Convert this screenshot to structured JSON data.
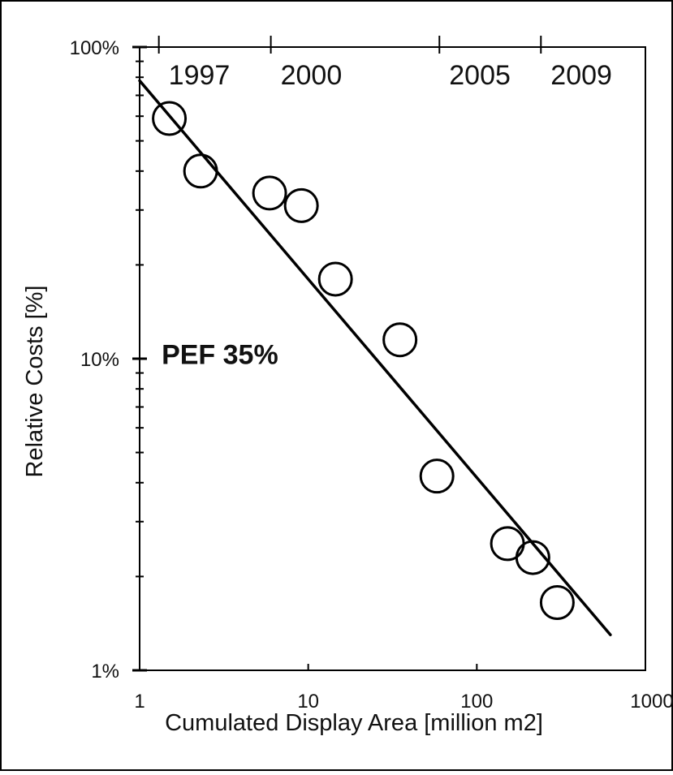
{
  "chart_data": {
    "type": "scatter",
    "xscale": "log",
    "yscale": "log",
    "xlim": [
      1,
      1000
    ],
    "ylim": [
      1,
      100
    ],
    "xlabel": "Cumulated Display Area [million m2]",
    "ylabel": "Relative Costs [%]",
    "x_tick_labels": [
      {
        "value": 1,
        "label": "1"
      },
      {
        "value": 10,
        "label": "10"
      },
      {
        "value": 100,
        "label": "100"
      },
      {
        "value": 1000,
        "label": "1000"
      }
    ],
    "y_tick_labels": [
      {
        "value": 1,
        "label": "1%"
      },
      {
        "value": 10,
        "label": "10%"
      },
      {
        "value": 100,
        "label": "100%"
      }
    ],
    "year_axis": [
      {
        "x": 1.3,
        "label": "1997"
      },
      {
        "x": 6.0,
        "label": "2000"
      },
      {
        "x": 60,
        "label": "2005"
      },
      {
        "x": 240,
        "label": "2009"
      }
    ],
    "series": [
      {
        "marker": "open-circle",
        "points": [
          {
            "x": 1.5,
            "y": 59
          },
          {
            "x": 2.3,
            "y": 40
          },
          {
            "x": 5.9,
            "y": 34
          },
          {
            "x": 9.1,
            "y": 31
          },
          {
            "x": 14.5,
            "y": 18
          },
          {
            "x": 35,
            "y": 11.5
          },
          {
            "x": 58,
            "y": 4.2
          },
          {
            "x": 152,
            "y": 2.55
          },
          {
            "x": 215,
            "y": 2.3
          },
          {
            "x": 300,
            "y": 1.65
          }
        ]
      }
    ],
    "trend_line": {
      "x": [
        1,
        620
      ],
      "y": [
        78,
        1.3
      ]
    },
    "annotations": [
      {
        "text": "PEF 35%",
        "x": 1.35,
        "y": 10.2
      }
    ],
    "grid": false,
    "legend": "none"
  }
}
